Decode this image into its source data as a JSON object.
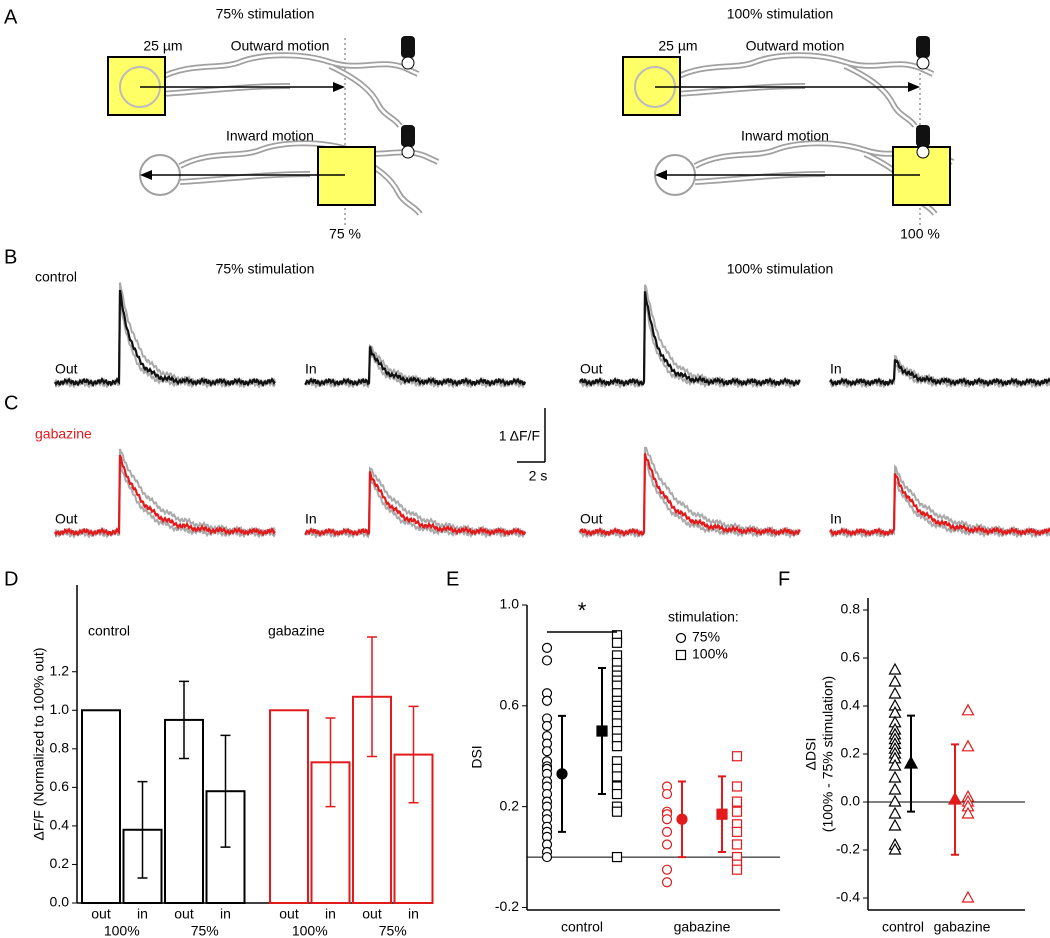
{
  "panel_labels": [
    "A",
    "B",
    "C",
    "D",
    "E",
    "F"
  ],
  "panel_a": {
    "left": {
      "title": "75% stimulation",
      "scale": "25 µm",
      "outward": "Outward motion",
      "inward": "Inward motion",
      "position": "75 %"
    },
    "right": {
      "title": "100% stimulation",
      "scale": "25 µm",
      "outward": "Outward motion",
      "inward": "Inward motion",
      "position": "100 %"
    }
  },
  "panel_b": {
    "condition": "control",
    "left_title": "75% stimulation",
    "right_title": "100% stimulation",
    "trace_labels": [
      "Out",
      "In",
      "Out",
      "In"
    ]
  },
  "panel_c": {
    "condition": "gabazine",
    "trace_labels": [
      "Out",
      "In",
      "Out",
      "In"
    ],
    "scale_y": "1 ΔF/F",
    "scale_x": "2 s"
  },
  "chart_data": [
    {
      "type": "bar",
      "ylabel": "ΔF/F (Normalized to 100% out)",
      "categories": [
        "out",
        "in",
        "out",
        "in",
        "out",
        "in",
        "out",
        "in"
      ],
      "groups": [
        "100%",
        "75%",
        "100%",
        "75%"
      ],
      "ylim": [
        0,
        1.65
      ],
      "yticks": [
        {
          "value": 0,
          "label": "0.0"
        },
        {
          "value": 0.2,
          "label": "0.2"
        },
        {
          "value": 0.4,
          "label": "0.4"
        },
        {
          "value": 0.6,
          "label": "0.6"
        },
        {
          "value": 0.8,
          "label": "0.8"
        },
        {
          "value": 1,
          "label": "1.0"
        },
        {
          "value": 1.2,
          "label": "1.2"
        }
      ],
      "series": [
        {
          "name": "control",
          "color": "#000000",
          "values": [
            1.0,
            0.38,
            0.95,
            0.58,
            null,
            null,
            null,
            null
          ],
          "errors": [
            null,
            0.25,
            0.2,
            0.29,
            null,
            null,
            null,
            null
          ]
        },
        {
          "name": "gabazine",
          "color": "#e31a1c",
          "values": [
            null,
            null,
            null,
            null,
            1.0,
            0.73,
            1.07,
            0.77
          ],
          "errors": [
            null,
            null,
            null,
            null,
            null,
            0.23,
            0.31,
            0.25
          ]
        }
      ]
    },
    {
      "type": "scatter",
      "ylabel": "DSI",
      "categories": [
        "control",
        "gabazine"
      ],
      "category_colors": [
        "#000000",
        "#e31a1c"
      ],
      "legend_title": "stimulation:",
      "annotation": "*",
      "ylim": [
        -0.21,
        1.0
      ],
      "yticks": [
        {
          "value": -0.2,
          "label": "-0.2"
        },
        0.2,
        0.6,
        {
          "value": 1,
          "label": "1.0"
        }
      ],
      "series": [
        {
          "name": "75%",
          "marker": "circle",
          "values": [
            [
              0.83,
              0.78,
              0.65,
              0.62,
              0.55,
              0.52,
              0.48,
              0.45,
              0.42,
              0.38,
              0.36,
              0.35,
              0.33,
              0.3,
              0.28,
              0.25,
              0.22,
              0.2,
              0.17,
              0.15,
              0.12,
              0.1,
              0.08,
              0.05,
              0.02,
              0.0
            ],
            [
              0.28,
              0.25,
              0.18,
              0.17,
              0.15,
              0.1,
              0.05,
              -0.05,
              -0.1
            ]
          ],
          "means": [
            0.33,
            0.15
          ],
          "errors": [
            0.23,
            0.15
          ]
        },
        {
          "name": "100%",
          "marker": "square",
          "values": [
            [
              0.88,
              0.85,
              0.8,
              0.77,
              0.74,
              0.72,
              0.7,
              0.68,
              0.65,
              0.62,
              0.6,
              0.58,
              0.56,
              0.53,
              0.5,
              0.47,
              0.44,
              0.38,
              0.35,
              0.32,
              0.28,
              0.25,
              0.2,
              0.18,
              0.0
            ],
            [
              0.4,
              0.28,
              0.22,
              0.18,
              0.13,
              0.1,
              0.05,
              0.0,
              -0.03,
              -0.05
            ]
          ],
          "means": [
            0.5,
            0.17
          ],
          "errors": [
            0.25,
            0.15
          ]
        }
      ]
    },
    {
      "type": "scatter",
      "ylabel": [
        "ΔDSI",
        "(100% - 75% stimulation)"
      ],
      "categories": [
        "control",
        "gabazine"
      ],
      "category_colors": [
        "#000000",
        "#e31a1c"
      ],
      "ylim": [
        -0.45,
        0.85
      ],
      "yticks": [
        {
          "value": -0.4,
          "label": "-0.4"
        },
        {
          "value": -0.2,
          "label": "-0.2"
        },
        {
          "value": 0,
          "label": "0.0"
        },
        0.2,
        0.4,
        0.6,
        0.8
      ],
      "series": [
        {
          "marker": "triangle",
          "values": [
            [
              0.55,
              0.5,
              0.45,
              0.4,
              0.37,
              0.33,
              0.3,
              0.28,
              0.26,
              0.24,
              0.22,
              0.2,
              0.18,
              0.15,
              0.1,
              0.05,
              0.0,
              -0.05,
              -0.1,
              -0.18,
              -0.2
            ],
            [
              0.38,
              0.23,
              0.02,
              0.0,
              -0.02,
              -0.05,
              -0.4
            ]
          ],
          "means": [
            0.16,
            0.01
          ],
          "errors": [
            0.2,
            0.23
          ]
        }
      ]
    }
  ]
}
